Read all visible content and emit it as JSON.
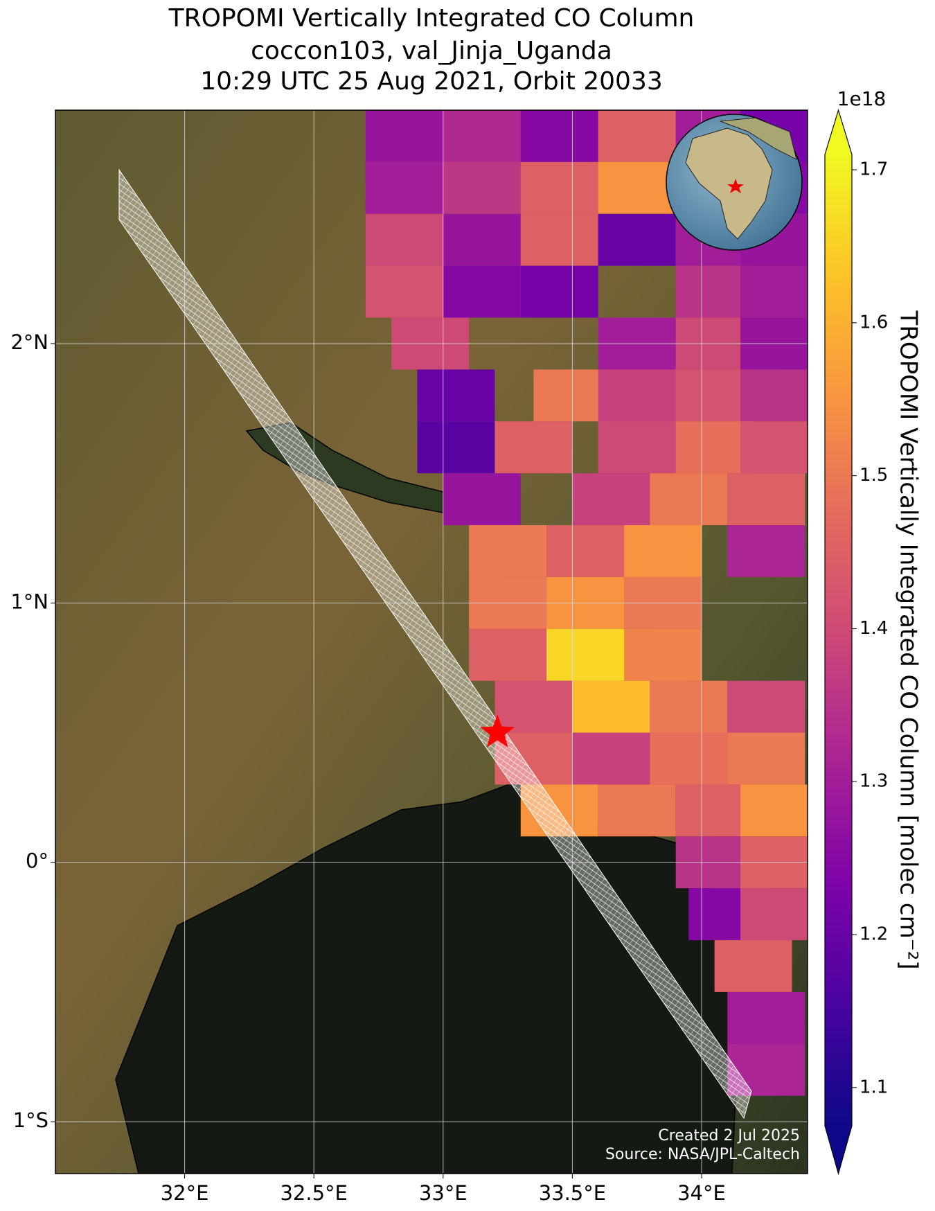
{
  "chart_data": {
    "type": "map",
    "title": [
      "TROPOMI Vertically Integrated CO Column",
      "coccon103, val_Jinja_Uganda",
      "10:29 UTC 25 Aug 2021, Orbit 20033"
    ],
    "xlim": [
      31.5,
      34.41
    ],
    "ylim": [
      -1.2,
      2.9
    ],
    "xticks": [
      {
        "value": 32,
        "label": "32°E"
      },
      {
        "value": 32.5,
        "label": "32.5°E"
      },
      {
        "value": 33,
        "label": "33°E"
      },
      {
        "value": 33.5,
        "label": "33.5°E"
      },
      {
        "value": 34,
        "label": "34°E"
      }
    ],
    "yticks": [
      {
        "value": 2,
        "label": "2°N"
      },
      {
        "value": 1,
        "label": "1°N"
      },
      {
        "value": 0,
        "label": "0°"
      },
      {
        "value": -1,
        "label": "1°S"
      }
    ],
    "grid": true,
    "colormap": "plasma",
    "clim": [
      1.075,
      1.71
    ],
    "cticks": [
      1.1,
      1.2,
      1.3,
      1.4,
      1.5,
      1.6,
      1.7
    ],
    "colorbar_offset": "1e18",
    "colorbar_label": "TROPOMI Vertically Integrated CO Column [molec cm⁻²]",
    "pixel_size": [
      0.3,
      0.2
    ],
    "pixels": {
      "lon": [
        32.85,
        33.15,
        33.45,
        33.75,
        34.05,
        34.3,
        32.85,
        33.15,
        33.45,
        33.75,
        34.05,
        34.3,
        32.85,
        33.15,
        33.45,
        33.75,
        34.05,
        34.3,
        32.85,
        33.15,
        33.45,
        34.05,
        34.3,
        32.95,
        33.75,
        34.05,
        34.3,
        33.05,
        33.5,
        33.75,
        34.05,
        34.3,
        33.05,
        33.35,
        33.75,
        34.05,
        34.3,
        33.15,
        33.65,
        33.95,
        34.25,
        33.25,
        33.55,
        33.85,
        34.25,
        33.25,
        33.55,
        33.85,
        33.25,
        33.55,
        33.85,
        33.35,
        33.65,
        33.95,
        34.25,
        33.35,
        33.65,
        33.95,
        34.25,
        33.45,
        33.75,
        34.05,
        34.3,
        34.05,
        34.3,
        34.1,
        34.3,
        34.2,
        34.25,
        34.25
      ],
      "lat": [
        2.8,
        2.8,
        2.8,
        2.8,
        2.8,
        2.8,
        2.6,
        2.6,
        2.6,
        2.6,
        2.6,
        2.6,
        2.4,
        2.4,
        2.4,
        2.4,
        2.4,
        2.4,
        2.2,
        2.2,
        2.2,
        2.2,
        2.2,
        2.0,
        2.0,
        2.0,
        2.0,
        1.8,
        1.8,
        1.8,
        1.8,
        1.8,
        1.6,
        1.6,
        1.6,
        1.6,
        1.6,
        1.4,
        1.4,
        1.4,
        1.4,
        1.2,
        1.2,
        1.2,
        1.2,
        1.0,
        1.0,
        1.0,
        0.8,
        0.8,
        0.8,
        0.6,
        0.6,
        0.6,
        0.6,
        0.4,
        0.4,
        0.4,
        0.4,
        0.2,
        0.2,
        0.2,
        0.2,
        0.0,
        0.0,
        -0.2,
        -0.2,
        -0.4,
        -0.6,
        -0.8
      ],
      "values": [
        1.28,
        1.33,
        1.25,
        1.45,
        1.3,
        1.22,
        1.3,
        1.36,
        1.45,
        1.55,
        1.32,
        1.25,
        1.4,
        1.28,
        1.45,
        1.2,
        1.3,
        1.28,
        1.42,
        1.25,
        1.22,
        1.35,
        1.3,
        1.4,
        1.3,
        1.4,
        1.28,
        1.2,
        1.5,
        1.38,
        1.42,
        1.35,
        1.18,
        1.45,
        1.4,
        1.48,
        1.42,
        1.28,
        1.38,
        1.5,
        1.45,
        1.5,
        1.45,
        1.55,
        1.32,
        1.5,
        1.55,
        1.5,
        1.45,
        1.66,
        1.52,
        1.42,
        1.62,
        1.5,
        1.4,
        1.45,
        1.38,
        1.48,
        1.5,
        1.55,
        1.5,
        1.45,
        1.55,
        1.35,
        1.45,
        1.25,
        1.4,
        1.45,
        1.3,
        1.32
      ]
    },
    "station": {
      "lon": 33.21,
      "lat": 0.5
    },
    "footer": [
      "Created 2 Jul 2025",
      "Source: NASA/JPL-Caltech"
    ]
  }
}
